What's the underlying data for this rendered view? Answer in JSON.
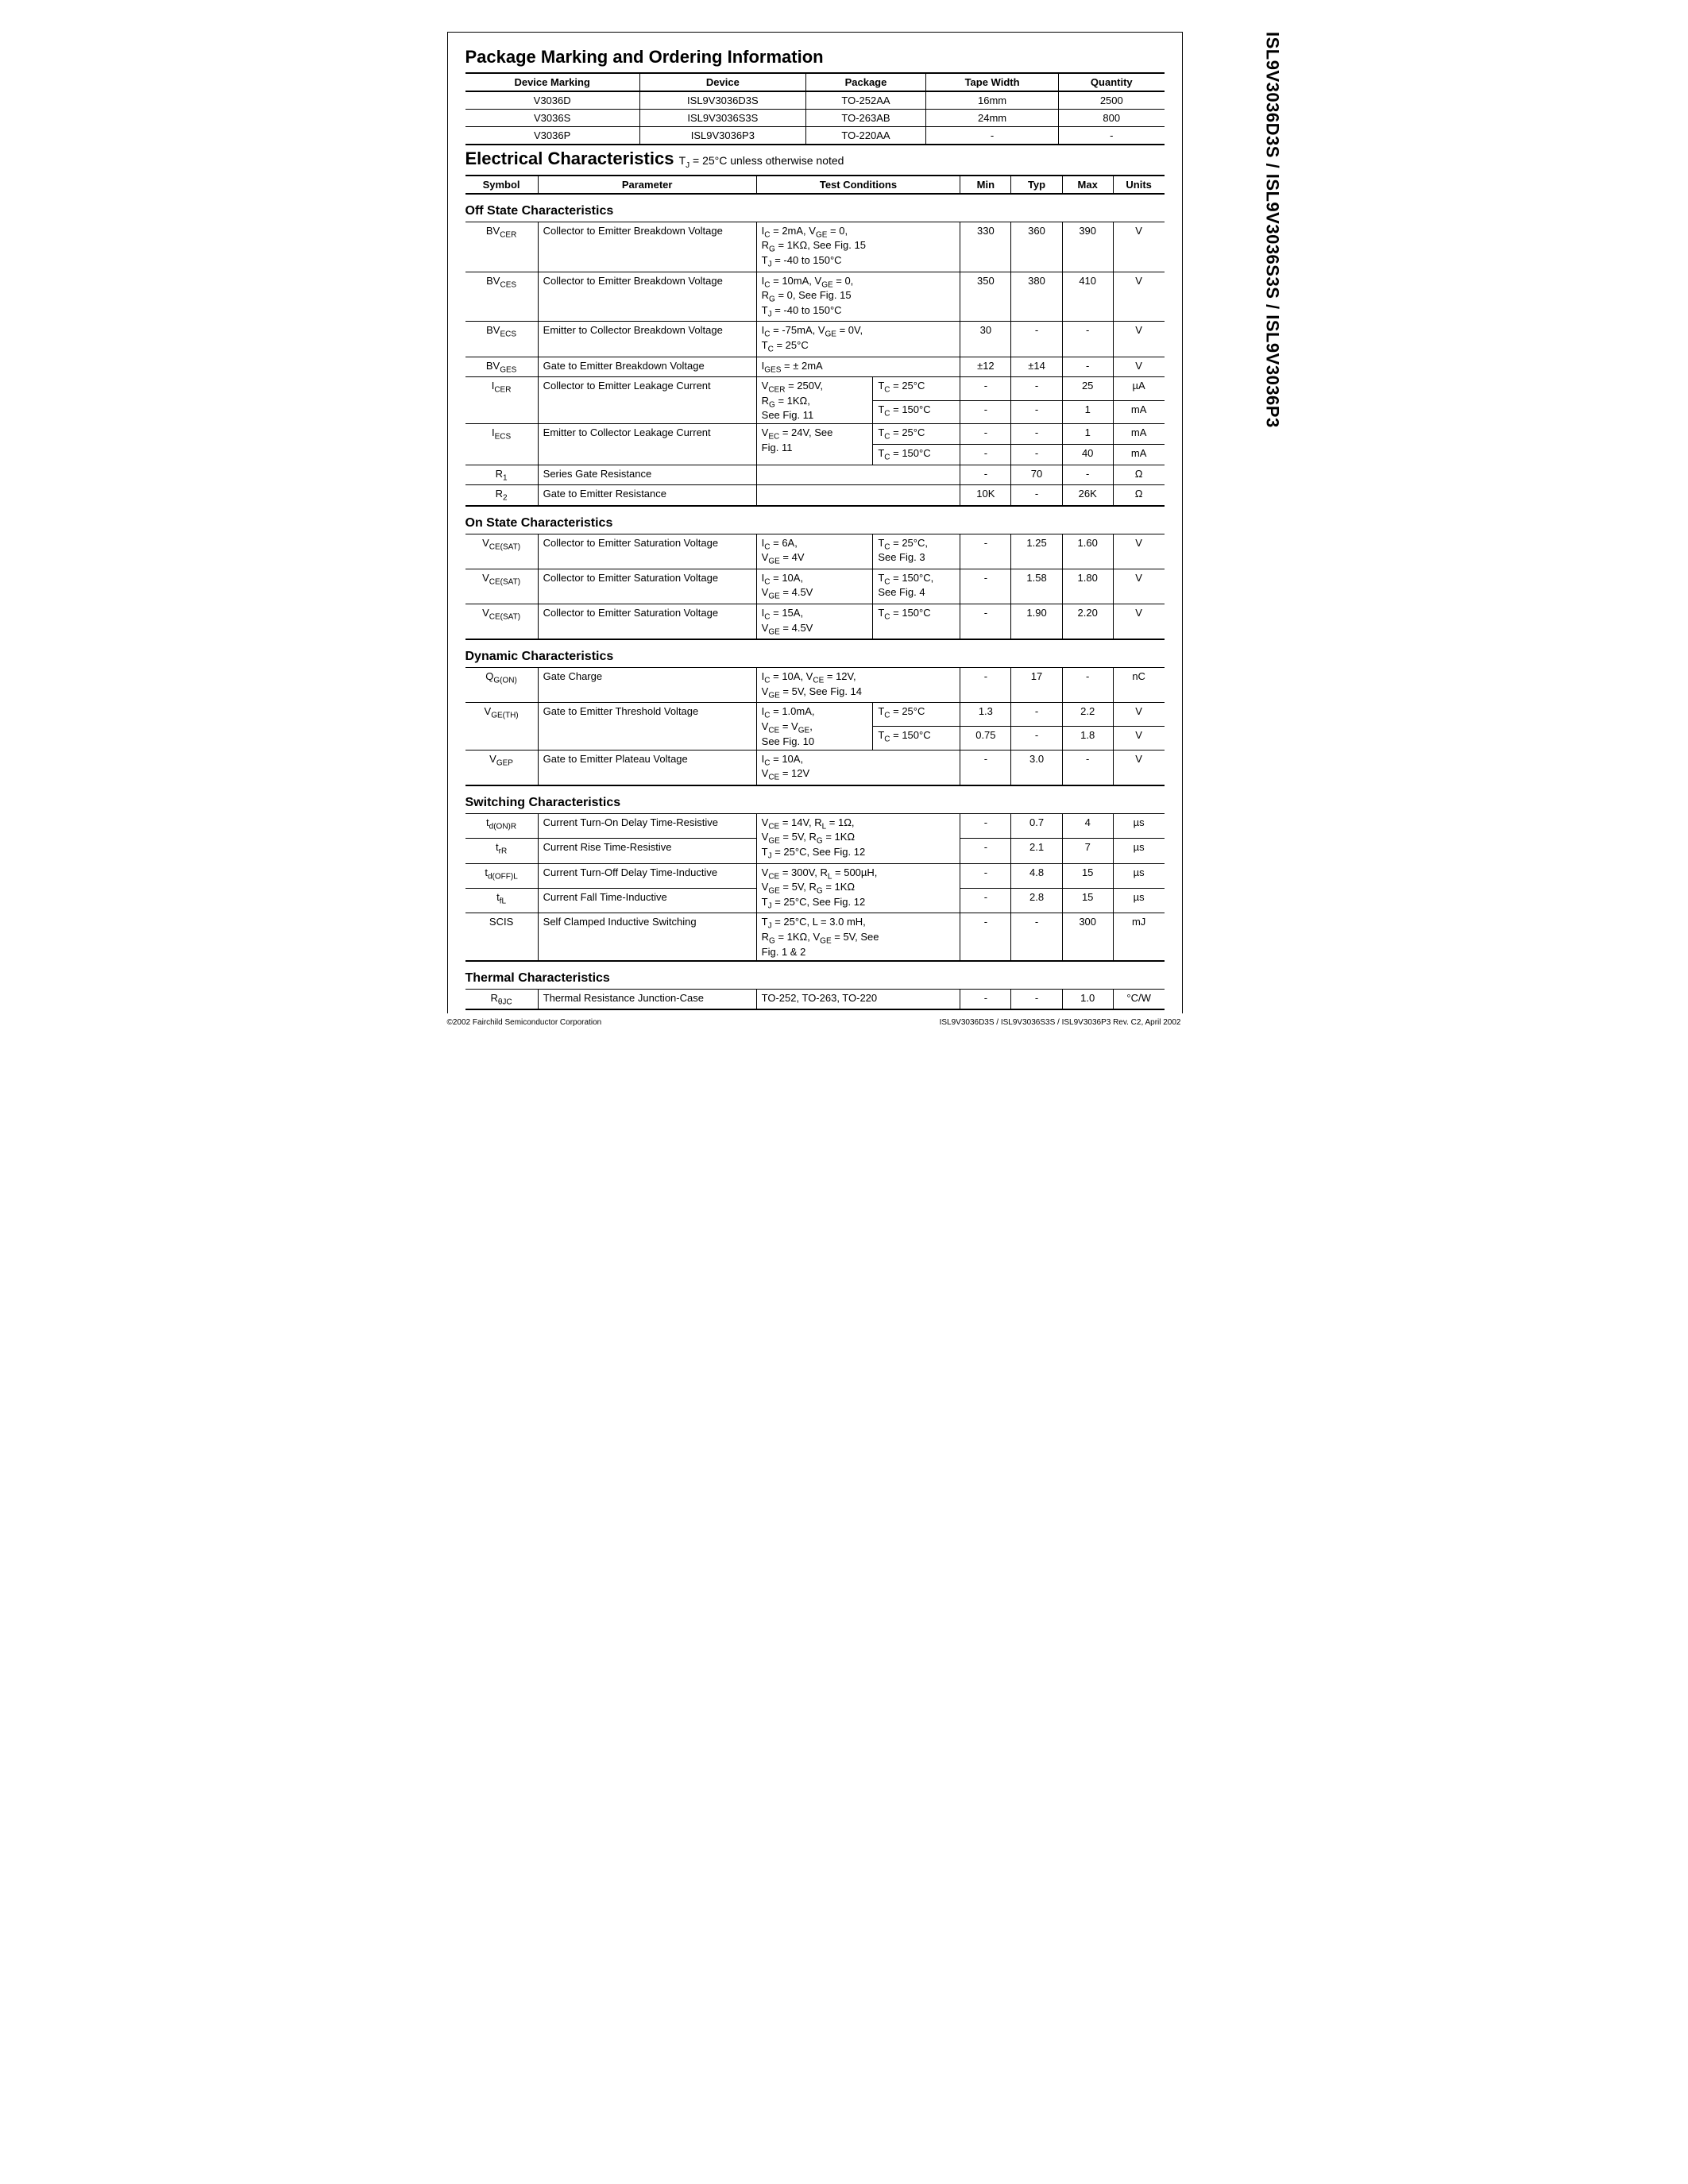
{
  "side_title": "ISL9V3036D3S / ISL9V3036S3S / ISL9V3036P3",
  "pkg_heading": "Package Marking and Ordering Information",
  "pkg_headers": [
    "Device Marking",
    "Device",
    "Package",
    "Tape Width",
    "Quantity"
  ],
  "pkg_rows": [
    [
      "V3036D",
      "ISL9V3036D3S",
      "TO-252AA",
      "16mm",
      "2500"
    ],
    [
      "V3036S",
      "ISL9V3036S3S",
      "TO-263AB",
      "24mm",
      "800"
    ],
    [
      "V3036P",
      "ISL9V3036P3",
      "TO-220AA",
      "-",
      "-"
    ]
  ],
  "elec_heading": "Electrical Characteristics",
  "elec_note_prefix": " T",
  "elec_note_sub": "J",
  "elec_note_rest": " = 25°C unless otherwise noted",
  "elec_headers": [
    "Symbol",
    "Parameter",
    "Test Conditions",
    "Min",
    "Typ",
    "Max",
    "Units"
  ],
  "sections": {
    "off": "Off State Characteristics",
    "on": "On State Characteristics",
    "dyn": "Dynamic Characteristics",
    "sw": "Switching Characteristics",
    "th": "Thermal Characteristics"
  },
  "off_rows": [
    {
      "sym": "BV",
      "sub": "CER",
      "param": "Collector to Emitter Breakdown Voltage",
      "cond": "I<sub>C</sub> = 2mA, V<sub>GE</sub> = 0,<br>R<sub>G</sub> = 1KΩ,  See Fig. 15<br>T<sub>J</sub> = -40 to 150°C",
      "min": "330",
      "typ": "360",
      "max": "390",
      "u": "V"
    },
    {
      "sym": "BV",
      "sub": "CES",
      "param": "Collector to Emitter Breakdown Voltage",
      "cond": "I<sub>C</sub> = 10mA, V<sub>GE</sub> = 0,<br>R<sub>G</sub> = 0,  See Fig. 15<br>T<sub>J</sub> = -40 to 150°C",
      "min": "350",
      "typ": "380",
      "max": "410",
      "u": "V"
    },
    {
      "sym": "BV",
      "sub": "ECS",
      "param": "Emitter to Collector Breakdown Voltage",
      "cond": "I<sub>C</sub> = -75mA, V<sub>GE</sub> = 0V,<br>T<sub>C</sub> = 25°C",
      "min": "30",
      "typ": "-",
      "max": "-",
      "u": "V"
    },
    {
      "sym": "BV",
      "sub": "GES",
      "param": "Gate to Emitter Breakdown Voltage",
      "cond": "I<sub>GES</sub> = ± 2mA",
      "min": "±12",
      "typ": "±14",
      "max": "-",
      "u": "V"
    }
  ],
  "icer": {
    "sym": "I",
    "sub": "CER",
    "param": "Collector to Emitter Leakage Current",
    "cond1": "V<sub>CER</sub> = 250V,<br>R<sub>G</sub> = 1KΩ,<br>See Fig. 11",
    "r1": {
      "cond2": "T<sub>C</sub> = 25°C",
      "min": "-",
      "typ": "-",
      "max": "25",
      "u": "µA"
    },
    "r2": {
      "cond2": "T<sub>C</sub> = 150°C",
      "min": "-",
      "typ": "-",
      "max": "1",
      "u": "mA"
    }
  },
  "iecs": {
    "sym": "I",
    "sub": "ECS",
    "param": "Emitter to Collector Leakage Current",
    "cond1": "V<sub>EC</sub> = 24V, See<br>Fig. 11",
    "r1": {
      "cond2": "T<sub>C</sub> = 25°C",
      "min": "-",
      "typ": "-",
      "max": "1",
      "u": "mA"
    },
    "r2": {
      "cond2": "T<sub>C</sub> = 150°C",
      "min": "-",
      "typ": "-",
      "max": "40",
      "u": "mA"
    }
  },
  "r1_row": {
    "sym": "R",
    "sub": "1",
    "param": "Series Gate Resistance",
    "cond": "",
    "min": "-",
    "typ": "70",
    "max": "-",
    "u": "Ω"
  },
  "r2_row": {
    "sym": "R",
    "sub": "2",
    "param": "Gate to Emitter Resistance",
    "cond": "",
    "min": "10K",
    "typ": "-",
    "max": "26K",
    "u": "Ω"
  },
  "on_rows": [
    {
      "sym": "V",
      "sub": "CE(SAT)",
      "param": "Collector to Emitter Saturation Voltage",
      "cond1": "I<sub>C</sub> = 6A,<br>V<sub>GE</sub> = 4V",
      "cond2": "T<sub>C</sub> = 25°C,<br>See Fig. 3",
      "min": "-",
      "typ": "1.25",
      "max": "1.60",
      "u": "V"
    },
    {
      "sym": "V",
      "sub": "CE(SAT)",
      "param": "Collector to Emitter Saturation Voltage",
      "cond1": "I<sub>C</sub> = 10A,<br>V<sub>GE</sub> = 4.5V",
      "cond2": "T<sub>C</sub> = 150°C,<br>See Fig. 4",
      "min": "-",
      "typ": "1.58",
      "max": "1.80",
      "u": "V"
    },
    {
      "sym": "V",
      "sub": "CE(SAT)",
      "param": "Collector to Emitter Saturation Voltage",
      "cond1": "I<sub>C</sub> = 15A,<br>V<sub>GE</sub> = 4.5V",
      "cond2": "T<sub>C</sub> = 150°C",
      "min": "-",
      "typ": "1.90",
      "max": "2.20",
      "u": "V"
    }
  ],
  "dyn_qg": {
    "sym": "Q",
    "sub": "G(ON)",
    "param": "Gate Charge",
    "cond": "I<sub>C</sub> = 10A, V<sub>CE</sub> = 12V,<br>V<sub>GE</sub> = 5V, See Fig. 14",
    "min": "-",
    "typ": "17",
    "max": "-",
    "u": "nC"
  },
  "dyn_vgeth": {
    "sym": "V",
    "sub": "GE(TH)",
    "param": "Gate to Emitter Threshold Voltage",
    "cond1": "I<sub>C</sub> = 1.0mA,<br>V<sub>CE</sub> = V<sub>GE</sub>,<br>See Fig. 10",
    "r1": {
      "cond2": "T<sub>C</sub> = 25°C",
      "min": "1.3",
      "typ": "-",
      "max": "2.2",
      "u": "V"
    },
    "r2": {
      "cond2": "T<sub>C</sub> = 150°C",
      "min": "0.75",
      "typ": "-",
      "max": "1.8",
      "u": "V"
    }
  },
  "dyn_vgep": {
    "sym": "V",
    "sub": "GEP",
    "param": "Gate to Emitter Plateau Voltage",
    "cond": "I<sub>C</sub> = 10A,<br>V<sub>CE</sub> = 12V",
    "min": "-",
    "typ": "3.0",
    "max": "-",
    "u": "V"
  },
  "sw_group1_cond": "V<sub>CE</sub> = 14V, R<sub>L</sub> = 1Ω,<br>V<sub>GE</sub> = 5V, R<sub>G</sub> = 1KΩ<br>T<sub>J</sub> = 25°C, See Fig. 12",
  "sw_group1": [
    {
      "sym": "t",
      "sub": "d(ON)R",
      "param": "Current Turn-On Delay Time-Resistive",
      "min": "-",
      "typ": "0.7",
      "max": "4",
      "u": "µs"
    },
    {
      "sym": "t",
      "sub": "rR",
      "param": "Current Rise Time-Resistive",
      "min": "-",
      "typ": "2.1",
      "max": "7",
      "u": "µs"
    }
  ],
  "sw_group2_cond": "V<sub>CE</sub> = 300V, R<sub>L</sub> = 500µH,<br>V<sub>GE</sub> = 5V, R<sub>G</sub> = 1KΩ<br>T<sub>J</sub> = 25°C, See Fig. 12",
  "sw_group2": [
    {
      "sym": "t",
      "sub": "d(OFF)L",
      "param": "Current Turn-Off Delay Time-Inductive",
      "min": "-",
      "typ": "4.8",
      "max": "15",
      "u": "µs"
    },
    {
      "sym": "t",
      "sub": "fL",
      "param": "Current Fall Time-Inductive",
      "min": "-",
      "typ": "2.8",
      "max": "15",
      "u": "µs"
    }
  ],
  "sw_scis": {
    "sym": "SCIS",
    "sub": "",
    "param": "Self Clamped Inductive Switching",
    "cond": "T<sub>J</sub> = 25°C, L = 3.0 mH,<br>R<sub>G</sub> = 1KΩ,  V<sub>GE</sub> = 5V, See<br>Fig. 1 & 2",
    "min": "-",
    "typ": "-",
    "max": "300",
    "u": "mJ"
  },
  "th_row": {
    "sym": "R",
    "sub": "θJC",
    "param": "Thermal Resistance Junction-Case",
    "cond": "TO-252, TO-263, TO-220",
    "min": "-",
    "typ": "-",
    "max": "1.0",
    "u": "°C/W"
  },
  "footer_left": "©2002 Fairchild Semiconductor Corporation",
  "footer_right": "ISL9V3036D3S / ISL9V3036S3S / ISL9V3036P3 Rev. C2, April 2002"
}
